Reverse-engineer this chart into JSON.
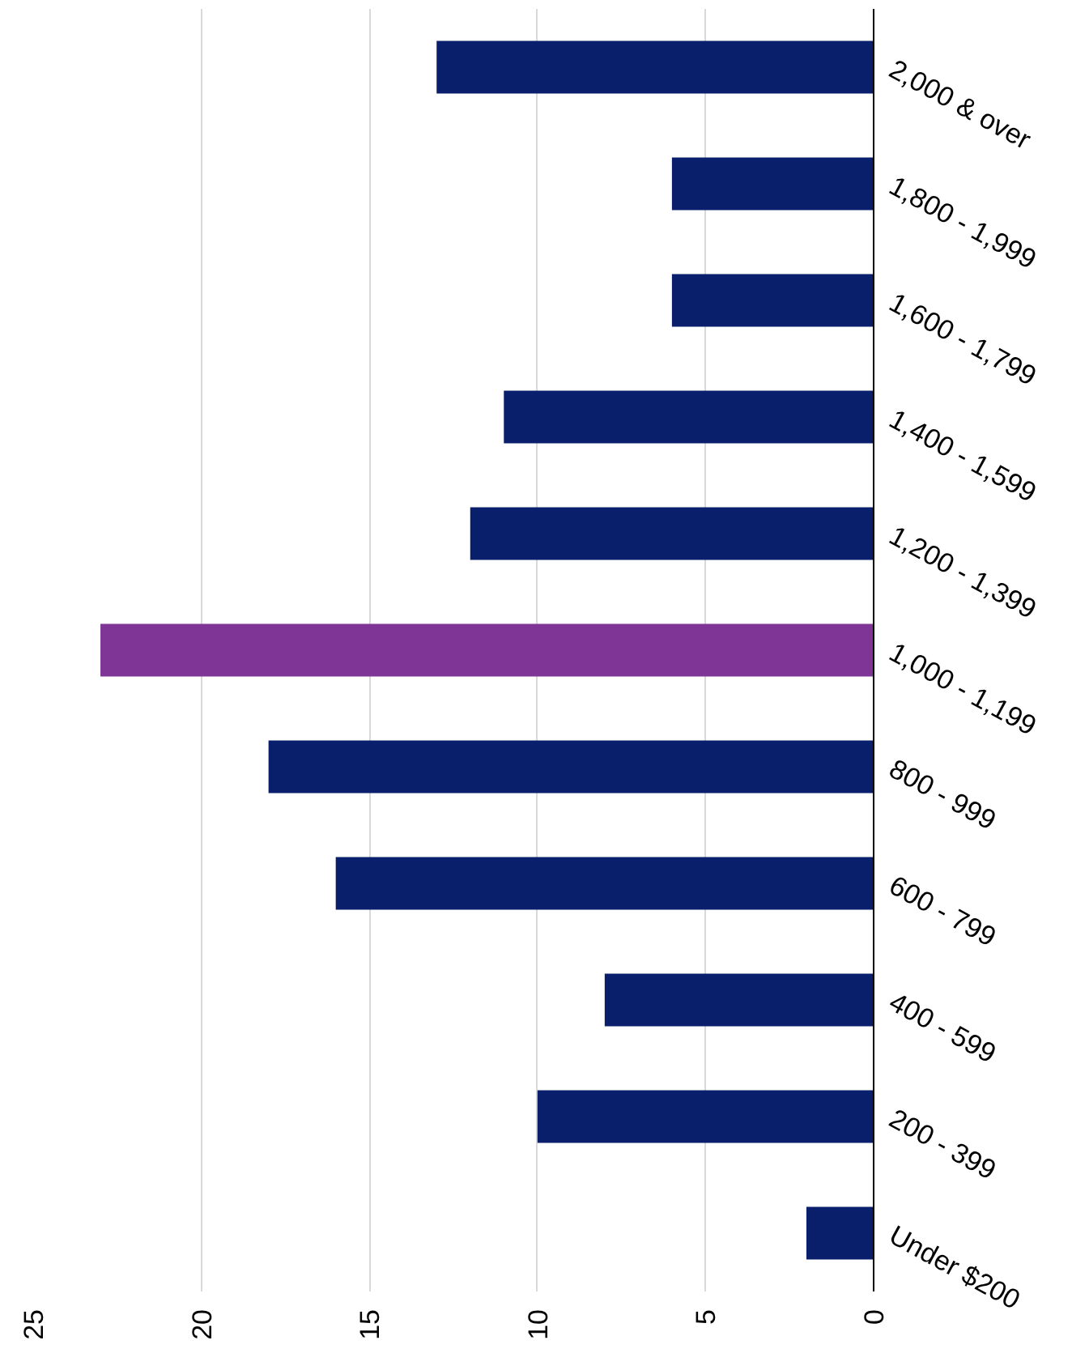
{
  "chart_data": {
    "type": "bar",
    "orientation": "horizontal",
    "categories": [
      "2,000 & over",
      "1,800 - 1,999",
      "1,600 - 1,799",
      "1,400 - 1,599",
      "1,200 - 1,399",
      "1,000 - 1,199",
      "800 - 999",
      "600 - 799",
      "400 - 599",
      "200 - 399",
      "Under $200"
    ],
    "values": [
      13,
      6,
      6,
      11,
      12,
      23,
      18,
      16,
      8,
      10,
      2
    ],
    "colors": [
      "#0a1f6b",
      "#0a1f6b",
      "#0a1f6b",
      "#0a1f6b",
      "#0a1f6b",
      "#7f3596",
      "#0a1f6b",
      "#0a1f6b",
      "#0a1f6b",
      "#0a1f6b",
      "#0a1f6b"
    ],
    "xlim": [
      25,
      0
    ],
    "xticks": [
      0,
      5,
      10,
      15,
      20,
      25
    ],
    "grid": "x"
  }
}
